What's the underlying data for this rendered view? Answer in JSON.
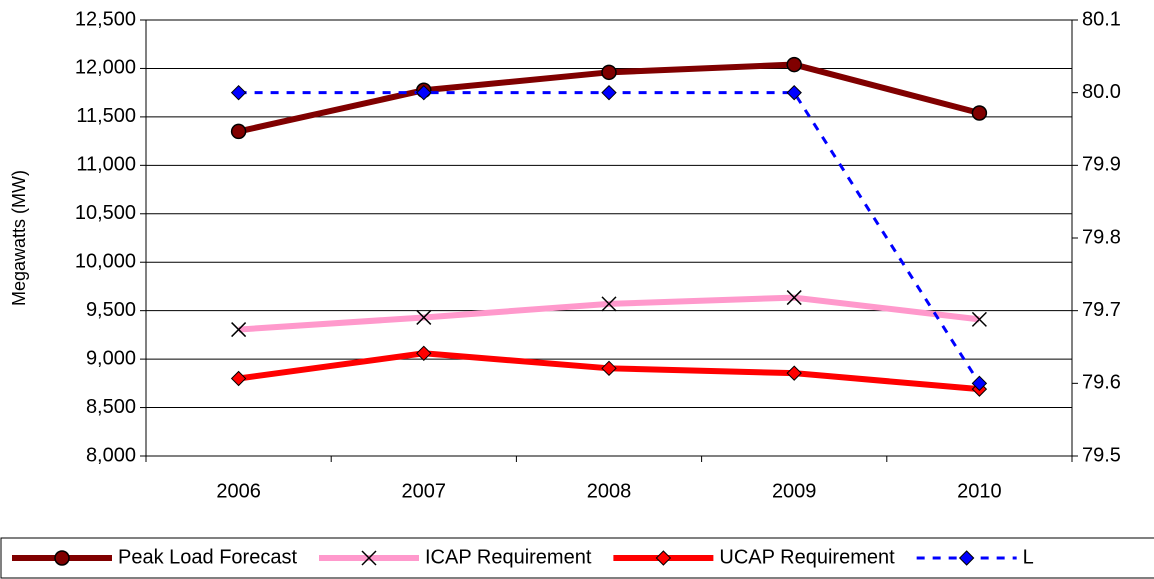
{
  "chart_data": {
    "type": "line",
    "y_label": "Megawatts (MW)",
    "categories": [
      "2006",
      "2007",
      "2008",
      "2009",
      "2010"
    ],
    "ylim": [
      8000,
      12500
    ],
    "yticks": [
      {
        "value": 8000,
        "label": "8,000"
      },
      {
        "value": 8500,
        "label": "8,500"
      },
      {
        "value": 9000,
        "label": "9,000"
      },
      {
        "value": 9500,
        "label": "9,500"
      },
      {
        "value": 10000,
        "label": "10,000"
      },
      {
        "value": 10500,
        "label": "10,500"
      },
      {
        "value": 11000,
        "label": "11,000"
      },
      {
        "value": 11500,
        "label": "11,500"
      },
      {
        "value": 12000,
        "label": "12,000"
      },
      {
        "value": 12500,
        "label": "12,500"
      }
    ],
    "y2lim": [
      79.5,
      80.1
    ],
    "y2ticks": [
      79.5,
      79.6,
      79.7,
      79.8,
      79.9,
      80.0,
      80.1
    ],
    "grid": true,
    "legend": "bottom",
    "series": [
      {
        "name": "Peak Load Forecast",
        "color": "#800000",
        "marker": "circle",
        "dash": false,
        "values": [
          11350,
          11775,
          11960,
          12040,
          11540
        ]
      },
      {
        "name": "ICAP Requirement",
        "color": "#ff99cc",
        "marker": "x",
        "dash": false,
        "values": [
          9305,
          9430,
          9570,
          9635,
          9410
        ]
      },
      {
        "name": "UCAP Requirement",
        "color": "#ff0000",
        "marker": "diamond",
        "dash": false,
        "values": [
          8800,
          9060,
          8905,
          8855,
          8690
        ]
      },
      {
        "name": "L",
        "color": "#0000ff",
        "marker": "diamond",
        "dash": true,
        "axis": "y2",
        "values": [
          80.0,
          80.0,
          80.0,
          80.0,
          79.6
        ]
      }
    ]
  }
}
